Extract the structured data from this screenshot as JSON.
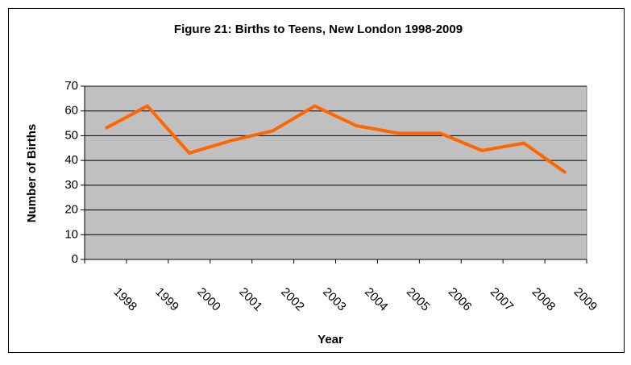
{
  "chart_data": {
    "type": "line",
    "title": "Figure 21: Births to Teens, New London 1998-2009",
    "x_label": "Year",
    "y_label": "Number of Births",
    "categories": [
      "1998",
      "1999",
      "2000",
      "2001",
      "2002",
      "2003",
      "2004",
      "2005",
      "2006",
      "2007",
      "2008",
      "2009"
    ],
    "series": [
      {
        "name": "Births to Teens",
        "color": "#ff6600",
        "values": [
          53,
          62,
          43,
          48,
          52,
          62,
          54,
          51,
          51,
          44,
          47,
          35
        ]
      }
    ],
    "ylim": [
      0,
      70
    ],
    "yticks": [
      0,
      10,
      20,
      30,
      40,
      50,
      60,
      70
    ],
    "grid": true,
    "plot_background": "#c0c0c0"
  }
}
